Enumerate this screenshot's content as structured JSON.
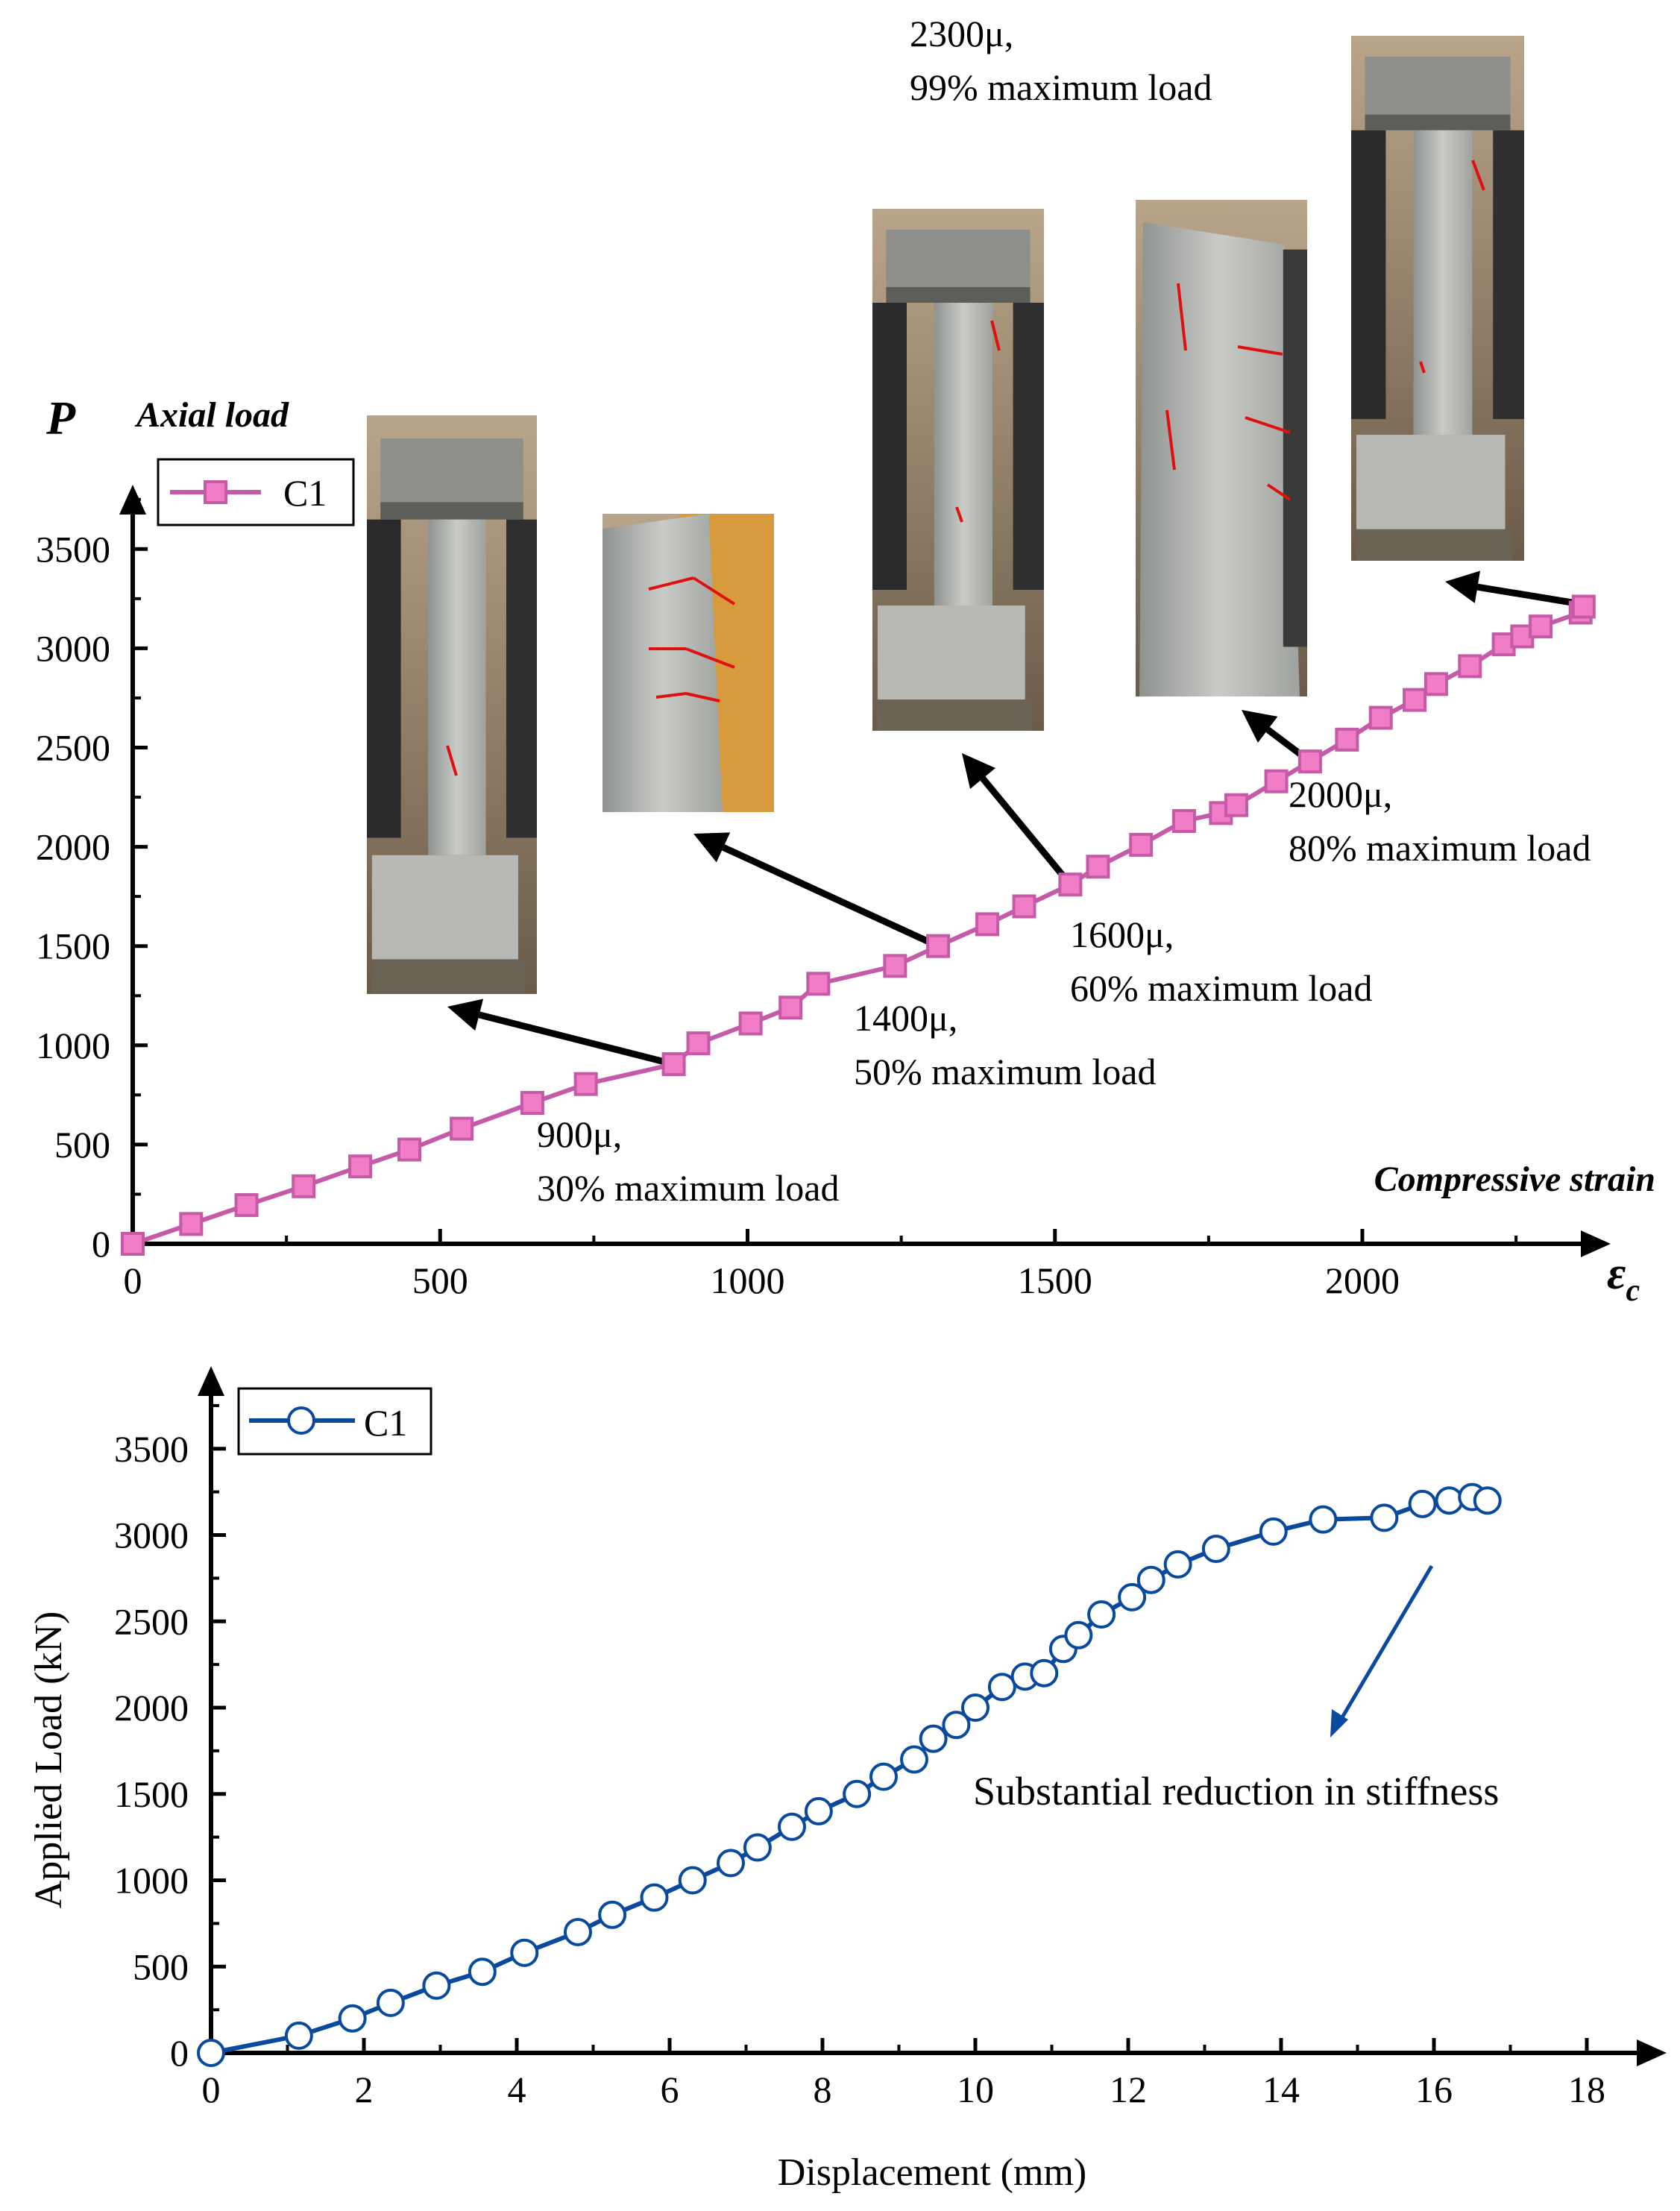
{
  "chart_data": [
    {
      "type": "line",
      "xlabel": "ε",
      "xlabel_subscript": "c",
      "ylabel": "P",
      "x_axis_title": "Compressive strain",
      "y_axis_title": "Axial load",
      "xlim": [
        0,
        2380
      ],
      "ylim": [
        0,
        3850
      ],
      "x_ticks": [
        0,
        500,
        1000,
        1500,
        2000
      ],
      "y_ticks": [
        0,
        500,
        1000,
        1500,
        2000,
        2500,
        3000,
        3500
      ],
      "legend": {
        "position": "top-left",
        "entries": [
          "C1"
        ]
      },
      "series": [
        {
          "name": "C1",
          "color": "#c45aa8",
          "marker_fill": "#f07dc6",
          "marker": "square",
          "x": [
            0,
            95,
            185,
            278,
            370,
            450,
            535,
            650,
            737,
            880,
            920,
            1005,
            1070,
            1115,
            1240,
            1310,
            1390,
            1450,
            1525,
            1570,
            1640,
            1710,
            1770,
            1795,
            1860,
            1915,
            1975,
            2030,
            2085,
            2120,
            2175,
            2230,
            2260,
            2290,
            2355,
            2360
          ],
          "y": [
            0,
            100,
            195,
            290,
            390,
            475,
            580,
            710,
            805,
            905,
            1010,
            1110,
            1190,
            1310,
            1400,
            1500,
            1610,
            1700,
            1810,
            1900,
            2010,
            2130,
            2170,
            2210,
            2330,
            2430,
            2540,
            2650,
            2740,
            2820,
            2910,
            3020,
            3060,
            3110,
            3180,
            3210
          ]
        }
      ],
      "annotations": [
        {
          "id": "a900",
          "line1": "900μ,",
          "line2": "30% maximum load"
        },
        {
          "id": "a1400",
          "line1": "1400μ,",
          "line2": "50% maximum load"
        },
        {
          "id": "a1600",
          "line1": "1600μ,",
          "line2": "60% maximum load"
        },
        {
          "id": "a2000",
          "line1": "2000μ,",
          "line2": "80% maximum load"
        },
        {
          "id": "a2300",
          "line1": "2300μ,",
          "line2": "99% maximum load"
        }
      ],
      "photos": [
        "column-photo-900",
        "column-photo-1400",
        "column-photo-1600",
        "column-photo-2000",
        "column-photo-2300"
      ]
    },
    {
      "type": "line",
      "xlabel": "Displacement (mm)",
      "ylabel": "Applied Load (kN)",
      "xlim": [
        0,
        19
      ],
      "ylim": [
        0,
        3850
      ],
      "x_ticks": [
        0,
        2,
        4,
        6,
        8,
        10,
        12,
        14,
        16,
        18
      ],
      "y_ticks": [
        0,
        500,
        1000,
        1500,
        2000,
        2500,
        3000,
        3500
      ],
      "legend": {
        "position": "top-left",
        "entries": [
          "C1"
        ]
      },
      "series": [
        {
          "name": "C1",
          "color": "#0a4a9e",
          "marker_fill": "#ffffff",
          "marker": "circle",
          "x": [
            0,
            1.15,
            1.85,
            2.35,
            2.95,
            3.55,
            4.1,
            4.8,
            5.25,
            5.8,
            6.3,
            6.8,
            7.15,
            7.6,
            7.95,
            8.45,
            8.8,
            9.2,
            9.45,
            9.75,
            10.0,
            10.35,
            10.65,
            10.9,
            11.15,
            11.35,
            11.65,
            12.05,
            12.3,
            12.65,
            13.15,
            13.9,
            14.55,
            15.35,
            15.85,
            16.2,
            16.5,
            16.7
          ],
          "y": [
            0,
            100,
            200,
            290,
            390,
            470,
            580,
            700,
            800,
            900,
            1000,
            1100,
            1190,
            1310,
            1400,
            1500,
            1600,
            1700,
            1820,
            1900,
            2000,
            2120,
            2180,
            2200,
            2340,
            2420,
            2540,
            2640,
            2740,
            2830,
            2920,
            3020,
            3090,
            3100,
            3180,
            3200,
            3220,
            3200
          ]
        }
      ],
      "annotations": [
        {
          "id": "stiffness",
          "text": "Substantial reduction in stiffness"
        }
      ]
    }
  ]
}
